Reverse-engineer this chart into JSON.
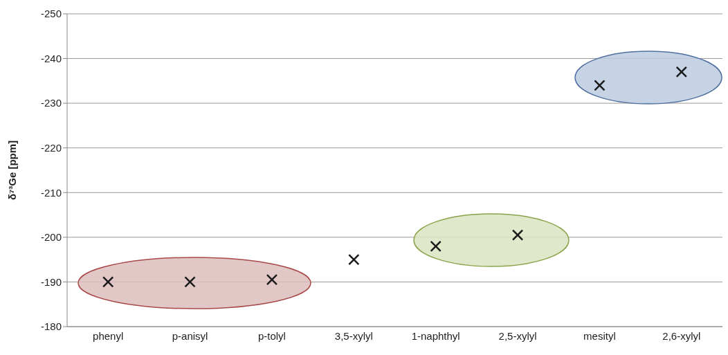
{
  "chart_data": {
    "type": "scatter",
    "ylabel": "δ⁷³Ge [ppm]",
    "categories": [
      "phenyl",
      "p-anisyl",
      "p-tolyl",
      "3,5-xylyl",
      "1-naphthyl",
      "2,5-xylyl",
      "mesityl",
      "2,6-xylyl"
    ],
    "values": [
      -190,
      -190,
      -190.5,
      -195,
      -198,
      -200.5,
      -234,
      -237
    ],
    "color": "#1a1a1a",
    "marker": "cross",
    "grid": "y",
    "ylim": [
      -180,
      -250
    ],
    "yticks": [
      -180,
      -190,
      -200,
      -210,
      -220,
      -230,
      -240,
      -250
    ]
  }
}
